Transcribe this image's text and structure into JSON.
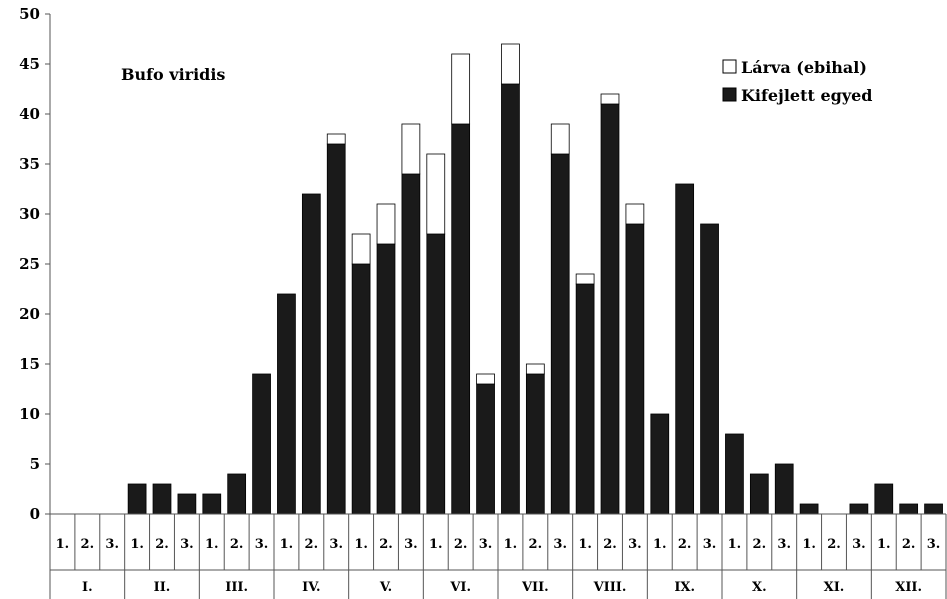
{
  "chart_data": {
    "type": "bar",
    "stacked": true,
    "title": "Bufo viridis",
    "xlabel": "",
    "ylabel": "",
    "ylim": [
      0,
      50
    ],
    "y_ticks": [
      0,
      5,
      10,
      15,
      20,
      25,
      30,
      35,
      40,
      45,
      50
    ],
    "grid": false,
    "legend_position": "top-right",
    "categories": [
      "1.",
      "2.",
      "3.",
      "1.",
      "2.",
      "3.",
      "1.",
      "2.",
      "3.",
      "1.",
      "2.",
      "3.",
      "1.",
      "2.",
      "3.",
      "1.",
      "2.",
      "3.",
      "1.",
      "2.",
      "3.",
      "1.",
      "2.",
      "3.",
      "1.",
      "2.",
      "3.",
      "1.",
      "2.",
      "3.",
      "1.",
      "2.",
      "3.",
      "1.",
      "2.",
      "3."
    ],
    "months": [
      "I.",
      "II.",
      "III.",
      "IV.",
      "V.",
      "VI.",
      "VII.",
      "VIII.",
      "IX.",
      "X.",
      "XI.",
      "XII."
    ],
    "series": [
      {
        "name": "Kifejlett egyed",
        "color": "#1a1a1a",
        "values": [
          0,
          0,
          0,
          3,
          3,
          2,
          2,
          4,
          14,
          22,
          32,
          37,
          25,
          27,
          34,
          28,
          39,
          13,
          43,
          14,
          36,
          23,
          41,
          29,
          10,
          33,
          29,
          8,
          4,
          5,
          1,
          0,
          1,
          3,
          1,
          1
        ]
      },
      {
        "name": "Lárva (ebihal)",
        "color": "#ffffff",
        "values": [
          0,
          0,
          0,
          0,
          0,
          0,
          0,
          0,
          0,
          0,
          0,
          1,
          3,
          4,
          5,
          8,
          7,
          1,
          4,
          1,
          3,
          1,
          1,
          2,
          0,
          0,
          0,
          0,
          0,
          0,
          0,
          0,
          0,
          0,
          0,
          0
        ]
      }
    ]
  }
}
